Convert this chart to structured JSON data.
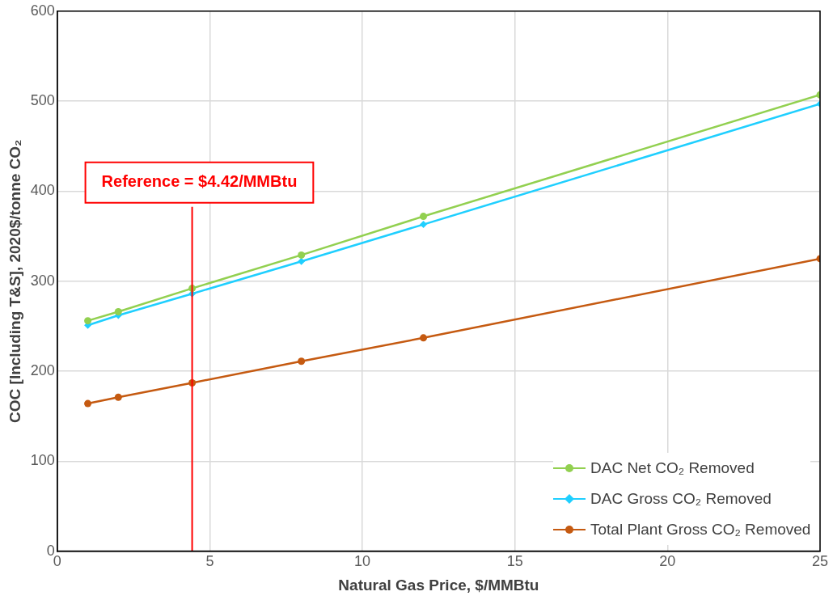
{
  "chart_data": {
    "type": "line",
    "xlabel": "Natural Gas Price, $/MMBtu",
    "ylabel": "COC [Including T&S], 2020$/tonne CO₂",
    "xlim": [
      0,
      25
    ],
    "xticks": [
      0,
      5,
      10,
      15,
      20,
      25
    ],
    "ylim": [
      0,
      600
    ],
    "yticks": [
      0,
      100,
      200,
      300,
      400,
      500,
      600
    ],
    "grid": true,
    "legend": "bottom right",
    "series": [
      {
        "name": "DAC Net CO₂ Removed",
        "color": "#92d050",
        "marker": "circle",
        "x": [
          1,
          2,
          4.42,
          8,
          12,
          25
        ],
        "values": [
          256,
          266,
          292,
          329,
          372,
          507
        ]
      },
      {
        "name": "DAC Gross CO₂ Removed",
        "color": "#1fcfff",
        "marker": "diamond",
        "x": [
          1,
          2,
          4.42,
          8,
          12,
          25
        ],
        "values": [
          251,
          262,
          286,
          322,
          363,
          497
        ]
      },
      {
        "name": "Total Plant Gross CO₂ Removed",
        "color": "#c55a11",
        "marker": "circle",
        "x": [
          1,
          2,
          4.42,
          8,
          12,
          25
        ],
        "values": [
          164,
          171,
          187,
          211,
          237,
          325
        ]
      }
    ],
    "ref_lines": [
      {
        "axis": "x",
        "value": 4.42,
        "label": "Reference = $4.42/MMBtu",
        "color": "#ff0000"
      }
    ]
  }
}
